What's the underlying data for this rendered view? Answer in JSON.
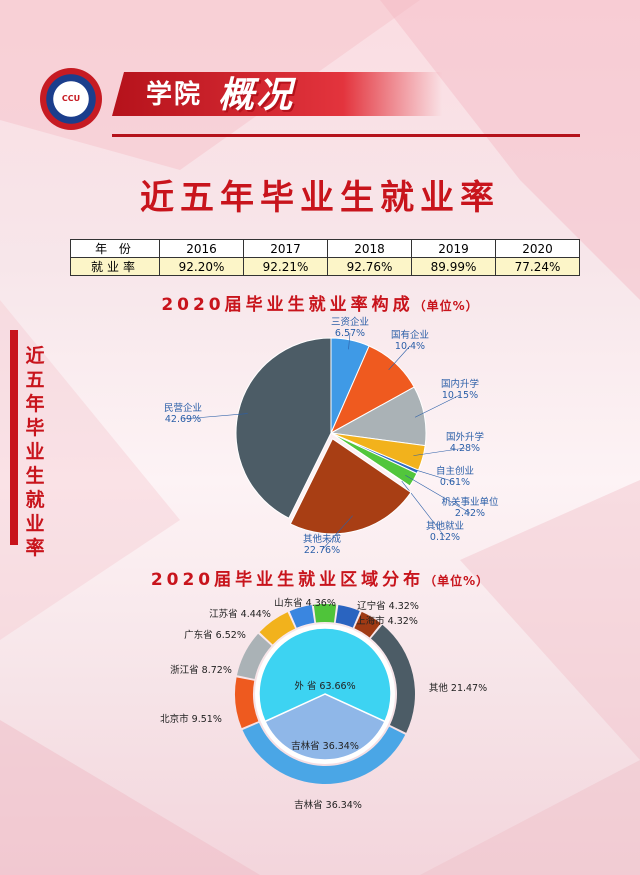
{
  "header": {
    "logo_text": "CCU",
    "title_part1": "学院",
    "title_part2": "概况"
  },
  "main_title": "近五年毕业生就业率",
  "side_title": "近五年毕业生就业率",
  "rates_table": {
    "row_labels": [
      "年 份",
      "就业率"
    ],
    "years": [
      "2016",
      "2017",
      "2018",
      "2019",
      "2020"
    ],
    "rates": [
      "92.20%",
      "92.21%",
      "92.76%",
      "89.99%",
      "77.24%"
    ]
  },
  "colors": {
    "accent": "#c8141c"
  },
  "chart_data": [
    {
      "type": "table",
      "columns": [
        "2016",
        "2017",
        "2018",
        "2019",
        "2020"
      ],
      "rows": [
        {
          "name": "就业率",
          "values": [
            92.2,
            92.21,
            92.76,
            89.99,
            77.24
          ]
        }
      ]
    },
    {
      "type": "pie",
      "title": "2020届毕业生就业率构成",
      "unit": "（单位%）",
      "slices": [
        {
          "name": "三资企业",
          "value": 6.57,
          "label": "6.57%",
          "color": "#3f9ae6"
        },
        {
          "name": "国有企业",
          "value": 10.4,
          "label": "10.4%",
          "color": "#ef5a1f"
        },
        {
          "name": "国内升学",
          "value": 10.15,
          "label": "10.15%",
          "color": "#aab2b6"
        },
        {
          "name": "国外升学",
          "value": 4.28,
          "label": "4.28%",
          "color": "#f2b21c"
        },
        {
          "name": "自主创业",
          "value": 0.61,
          "label": "0.61%",
          "color": "#2f6cc4"
        },
        {
          "name": "机关事业单位",
          "value": 2.42,
          "label": "2.42%",
          "color": "#52c63c"
        },
        {
          "name": "其他就业",
          "value": 0.12,
          "label": "0.12%",
          "color": "#9a3b9a"
        },
        {
          "name": "其他未成",
          "value": 22.76,
          "label": "22.76%",
          "color": "#a83e14"
        },
        {
          "name": "民营企业",
          "value": 42.69,
          "label": "42.69%",
          "color": "#4c5c66"
        }
      ]
    },
    {
      "type": "pie",
      "title": "2020届毕业生就业区域分布",
      "unit": "（单位%）",
      "inner": [
        {
          "name": "外 省",
          "value": 63.66,
          "label": "63.66%",
          "color": "#3dd3f2"
        },
        {
          "name": "吉林省",
          "value": 36.34,
          "label": "36.34%",
          "color": "#8fb7e8"
        }
      ],
      "outer": [
        {
          "name": "山东省",
          "value": 4.36,
          "label": "4.36%",
          "color": "#4fc43a"
        },
        {
          "name": "辽宁省",
          "value": 4.32,
          "label": "4.32%",
          "color": "#2a64c0"
        },
        {
          "name": "上海市",
          "value": 4.32,
          "label": "4.32%",
          "color": "#a03a14"
        },
        {
          "name": "其他",
          "value": 21.47,
          "label": "21.47%",
          "color": "#4c5c66"
        },
        {
          "name": "吉林省",
          "value": 36.34,
          "label": "36.34%",
          "color": "#4aa6e6"
        },
        {
          "name": "北京市",
          "value": 9.51,
          "label": "9.51%",
          "color": "#ee5a1f"
        },
        {
          "name": "浙江省",
          "value": 8.72,
          "label": "8.72%",
          "color": "#aab2b6"
        },
        {
          "name": "广东省",
          "value": 6.52,
          "label": "6.52%",
          "color": "#f2b21c"
        },
        {
          "name": "江苏省",
          "value": 4.44,
          "label": "4.44%",
          "color": "#3a86e0"
        }
      ]
    }
  ]
}
